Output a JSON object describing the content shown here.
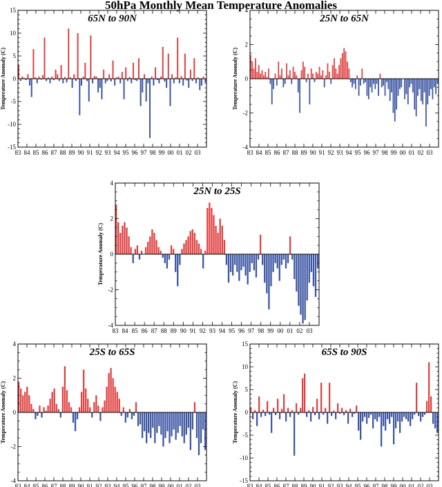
{
  "title": "50hPa Monthly Mean Temperature Anomalies",
  "colors": {
    "positive": "#e04040",
    "negative": "#3b55a3",
    "frame": "#000000"
  },
  "chart_data": [
    {
      "type": "bar",
      "title": "65N to 90N",
      "ylabel": "Temperature Anomaly (C)",
      "ylim": [
        -15,
        15
      ],
      "yticks": [
        -15,
        -10,
        -5,
        0,
        5,
        10,
        15
      ],
      "xlim": [
        1983,
        2004
      ],
      "xticks": [
        "83",
        "84",
        "85",
        "86",
        "87",
        "88",
        "89",
        "90",
        "91",
        "92",
        "93",
        "94",
        "95",
        "96",
        "97",
        "98",
        "99",
        "00",
        "01",
        "02",
        "03"
      ],
      "x_start": 1983,
      "step": "monthly",
      "values": [
        3.0,
        -0.5,
        0.5,
        0.2,
        -0.3,
        1.0,
        -1.5,
        -4.0,
        6.5,
        0.3,
        -1.0,
        0.5,
        -0.2,
        0.8,
        9.0,
        -0.5,
        0.3,
        -1.0,
        0.5,
        -0.3,
        2.0,
        1.0,
        -0.5,
        3.0,
        -1.0,
        0.4,
        -0.8,
        11.0,
        0.3,
        -2.0,
        1.0,
        -0.5,
        10.0,
        -8.0,
        -1.5,
        0.5,
        3.5,
        -0.5,
        -5.0,
        9.5,
        -1.0,
        0.6,
        0.5,
        -3.0,
        -2.0,
        -4.5,
        2.0,
        -1.0,
        -0.5,
        1.0,
        -0.6,
        4.0,
        -1.5,
        0.3,
        0.5,
        -1.0,
        1.5,
        -4.5,
        2.5,
        -0.5,
        0.4,
        -1.0,
        3.5,
        -0.3,
        -0.5,
        4.5,
        -6.0,
        -3.0,
        1.0,
        -5.0,
        -1.0,
        -13.0,
        0.5,
        -1.5,
        2.5,
        -0.3,
        -1.0,
        0.5,
        7.0,
        -0.6,
        -2.0,
        5.5,
        -6.0,
        1.0,
        -1.0,
        0.3,
        9.0,
        -1.0,
        0.6,
        -1.5,
        5.5,
        -0.4,
        -2.0,
        2.0,
        -0.5,
        4.5,
        -1.0,
        0.3,
        -2.5,
        -1.5,
        0.5,
        -0.8
      ]
    },
    {
      "type": "bar",
      "title": "25N to 65N",
      "ylabel": "Temperature Anomaly (C)",
      "ylim": [
        -4,
        4
      ],
      "yticks": [
        -4,
        -2,
        0,
        2,
        4
      ],
      "xlim": [
        1983,
        2004
      ],
      "xticks": [
        "83",
        "84",
        "85",
        "86",
        "87",
        "88",
        "89",
        "90",
        "91",
        "92",
        "93",
        "94",
        "95",
        "96",
        "97",
        "98",
        "99",
        "00",
        "01",
        "02",
        "03"
      ],
      "x_start": 1983,
      "step": "monthly",
      "values": [
        1.4,
        1.0,
        0.6,
        1.2,
        0.4,
        0.8,
        0.3,
        0.5,
        0.2,
        0.4,
        0.1,
        0.6,
        -0.3,
        -1.5,
        -0.6,
        0.3,
        -0.4,
        1.0,
        0.2,
        0.6,
        -0.5,
        -0.3,
        0.9,
        0.2,
        0.5,
        -0.3,
        0.7,
        0.4,
        0.2,
        -0.8,
        -2.0,
        0.5,
        1.0,
        0.7,
        -0.2,
        0.3,
        -1.5,
        0.6,
        0.3,
        -0.2,
        0.4,
        0.3,
        0.7,
        0.2,
        0.5,
        -0.5,
        0.2,
        0.9,
        0.4,
        -0.3,
        0.8,
        1.2,
        0.6,
        0.3,
        0.8,
        1.2,
        1.5,
        1.8,
        1.6,
        1.0,
        0.6,
        -0.2,
        -0.5,
        -0.3,
        -0.6,
        0.2,
        -1.0,
        -0.4,
        0.6,
        -0.3,
        -0.2,
        -1.0,
        -1.2,
        -0.5,
        -0.8,
        -0.3,
        -0.6,
        -0.3,
        -1.0,
        0.3,
        -0.5,
        -0.4,
        -1.0,
        -0.2,
        -0.6,
        -1.3,
        -0.8,
        -2.0,
        -2.5,
        -1.8,
        -1.0,
        -0.6,
        -0.5,
        0.0,
        -1.2,
        -0.9,
        -1.5,
        -0.5,
        -0.3,
        -0.8,
        -1.8,
        -2.2,
        -1.0,
        -0.6,
        -1.3,
        -1.5,
        -0.8,
        -2.8,
        -1.5,
        -1.0,
        -0.6,
        -1.2,
        -0.5,
        -0.9,
        -0.3
      ]
    },
    {
      "type": "bar",
      "title": "25N to 25S",
      "ylabel": "Temperature Anomaly (C)",
      "ylim": [
        -4,
        4
      ],
      "yticks": [
        -4,
        -2,
        0,
        2,
        4
      ],
      "xlim": [
        1983,
        2004
      ],
      "xticks": [
        "83",
        "84",
        "85",
        "86",
        "87",
        "88",
        "89",
        "90",
        "91",
        "92",
        "93",
        "94",
        "95",
        "96",
        "97",
        "98",
        "99",
        "00",
        "01",
        "02",
        "03"
      ],
      "x_start": 1983,
      "step": "monthly",
      "values": [
        2.8,
        1.8,
        1.2,
        1.6,
        1.8,
        1.5,
        1.0,
        0.4,
        -0.5,
        0.3,
        0.5,
        -0.3,
        0.2,
        0.0,
        0.4,
        0.7,
        1.0,
        1.4,
        1.2,
        0.8,
        0.4,
        0.2,
        -0.2,
        -0.5,
        -0.8,
        -0.3,
        0.5,
        0.3,
        -1.0,
        -1.8,
        -0.6,
        0.3,
        0.6,
        0.8,
        1.0,
        1.3,
        1.4,
        1.2,
        0.8,
        0.6,
        0.3,
        -0.8,
        0.2,
        2.6,
        2.9,
        2.6,
        2.2,
        1.6,
        1.2,
        2.0,
        1.6,
        0.8,
        -0.6,
        -1.6,
        -1.0,
        -1.2,
        -0.6,
        -1.0,
        -1.5,
        -0.9,
        -0.7,
        -1.2,
        -1.7,
        -1.0,
        -0.5,
        -0.9,
        -1.3,
        -0.3,
        1.1,
        -0.6,
        -1.6,
        -2.2,
        -3.1,
        -1.8,
        -1.0,
        -0.5,
        -0.8,
        -1.5,
        -0.6,
        -0.3,
        -0.8,
        -0.5,
        1.0,
        -0.3,
        -1.4,
        -2.1,
        -2.9,
        -3.4,
        -3.9,
        -3.7,
        -2.6,
        -1.6,
        -1.0,
        -1.8,
        -2.4,
        -0.8
      ]
    },
    {
      "type": "bar",
      "title": "25S to 65S",
      "ylabel": "Temperature Anomaly (C)",
      "ylim": [
        -4,
        4
      ],
      "yticks": [
        -4,
        -2,
        0,
        2,
        4
      ],
      "xlim": [
        1983,
        2004
      ],
      "xticks": [
        "83",
        "84",
        "85",
        "86",
        "87",
        "88",
        "89",
        "90",
        "91",
        "92",
        "93",
        "94",
        "95",
        "96",
        "97",
        "98",
        "99",
        "00",
        "01",
        "02",
        "03"
      ],
      "x_start": 1983,
      "step": "monthly",
      "values": [
        1.8,
        1.4,
        1.0,
        1.2,
        1.5,
        1.0,
        0.5,
        0.2,
        -0.4,
        -0.2,
        0.4,
        -0.3,
        0.3,
        0.1,
        0.4,
        0.8,
        1.2,
        1.4,
        0.5,
        0.2,
        -0.3,
        1.5,
        2.7,
        1.3,
        0.6,
        0.3,
        -0.6,
        -1.1,
        -0.4,
        0.3,
        1.2,
        2.5,
        1.4,
        0.8,
        0.3,
        -0.3,
        0.6,
        1.0,
        0.4,
        -0.5,
        0.3,
        0.7,
        1.5,
        2.3,
        2.6,
        2.0,
        1.5,
        1.2,
        0.8,
        -0.2,
        0.3,
        -0.6,
        -0.3,
        0.2,
        -0.4,
        -0.2,
        0.6,
        -0.8,
        -0.7,
        -1.5,
        -1.1,
        -1.8,
        -1.2,
        -1.5,
        -0.9,
        -1.8,
        -1.2,
        -0.8,
        -1.3,
        -2.0,
        -1.5,
        -1.1,
        -1.8,
        -1.4,
        -1.0,
        -1.6,
        -1.2,
        -0.8,
        -1.4,
        -1.8,
        -1.3,
        -0.9,
        -2.2,
        -1.0,
        0.6,
        -1.5,
        -2.5,
        -1.8,
        -1.0,
        -2.2
      ]
    },
    {
      "type": "bar",
      "title": "65S to 90S",
      "ylabel": "Temperature Anomaly (C)",
      "ylim": [
        -15,
        15
      ],
      "yticks": [
        -15,
        -10,
        -5,
        0,
        5,
        10,
        15
      ],
      "xlim": [
        1983,
        2004
      ],
      "xticks": [
        "83",
        "84",
        "85",
        "86",
        "87",
        "88",
        "89",
        "90",
        "91",
        "92",
        "93",
        "94",
        "95",
        "96",
        "97",
        "98",
        "99",
        "00",
        "01",
        "02",
        "03"
      ],
      "x_start": 1983,
      "step": "monthly",
      "values": [
        1.0,
        -1.5,
        0.5,
        -3.0,
        3.5,
        -1.0,
        0.6,
        -0.8,
        2.5,
        -0.5,
        -4.5,
        1.0,
        -0.6,
        3.0,
        -1.5,
        0.8,
        4.0,
        -2.0,
        1.0,
        -1.0,
        0.5,
        -9.5,
        2.0,
        -0.5,
        1.0,
        7.5,
        8.5,
        -1.0,
        0.5,
        -2.0,
        1.2,
        -0.6,
        3.0,
        -1.5,
        6.5,
        -0.5,
        1.0,
        -2.5,
        6.5,
        -0.8,
        0.4,
        -1.5,
        2.0,
        -0.3,
        1.0,
        -0.6,
        0.5,
        -2.5,
        0.8,
        -1.0,
        -0.3,
        1.5,
        -4.0,
        -6.0,
        -2.0,
        -1.0,
        -2.5,
        -1.2,
        -0.5,
        -3.5,
        -1.5,
        -2.0,
        -1.0,
        -7.5,
        -3.0,
        -4.0,
        -1.5,
        -2.5,
        -1.0,
        -7.0,
        -3.5,
        -2.0,
        -4.5,
        -2.0,
        -1.0,
        -1.5,
        -2.0,
        -3.0,
        -1.5,
        -0.5,
        6.5,
        -0.8,
        -2.0,
        -1.0,
        -0.5,
        2.5,
        11.0,
        3.5,
        -2.5,
        -3.5,
        -4.5
      ]
    }
  ]
}
